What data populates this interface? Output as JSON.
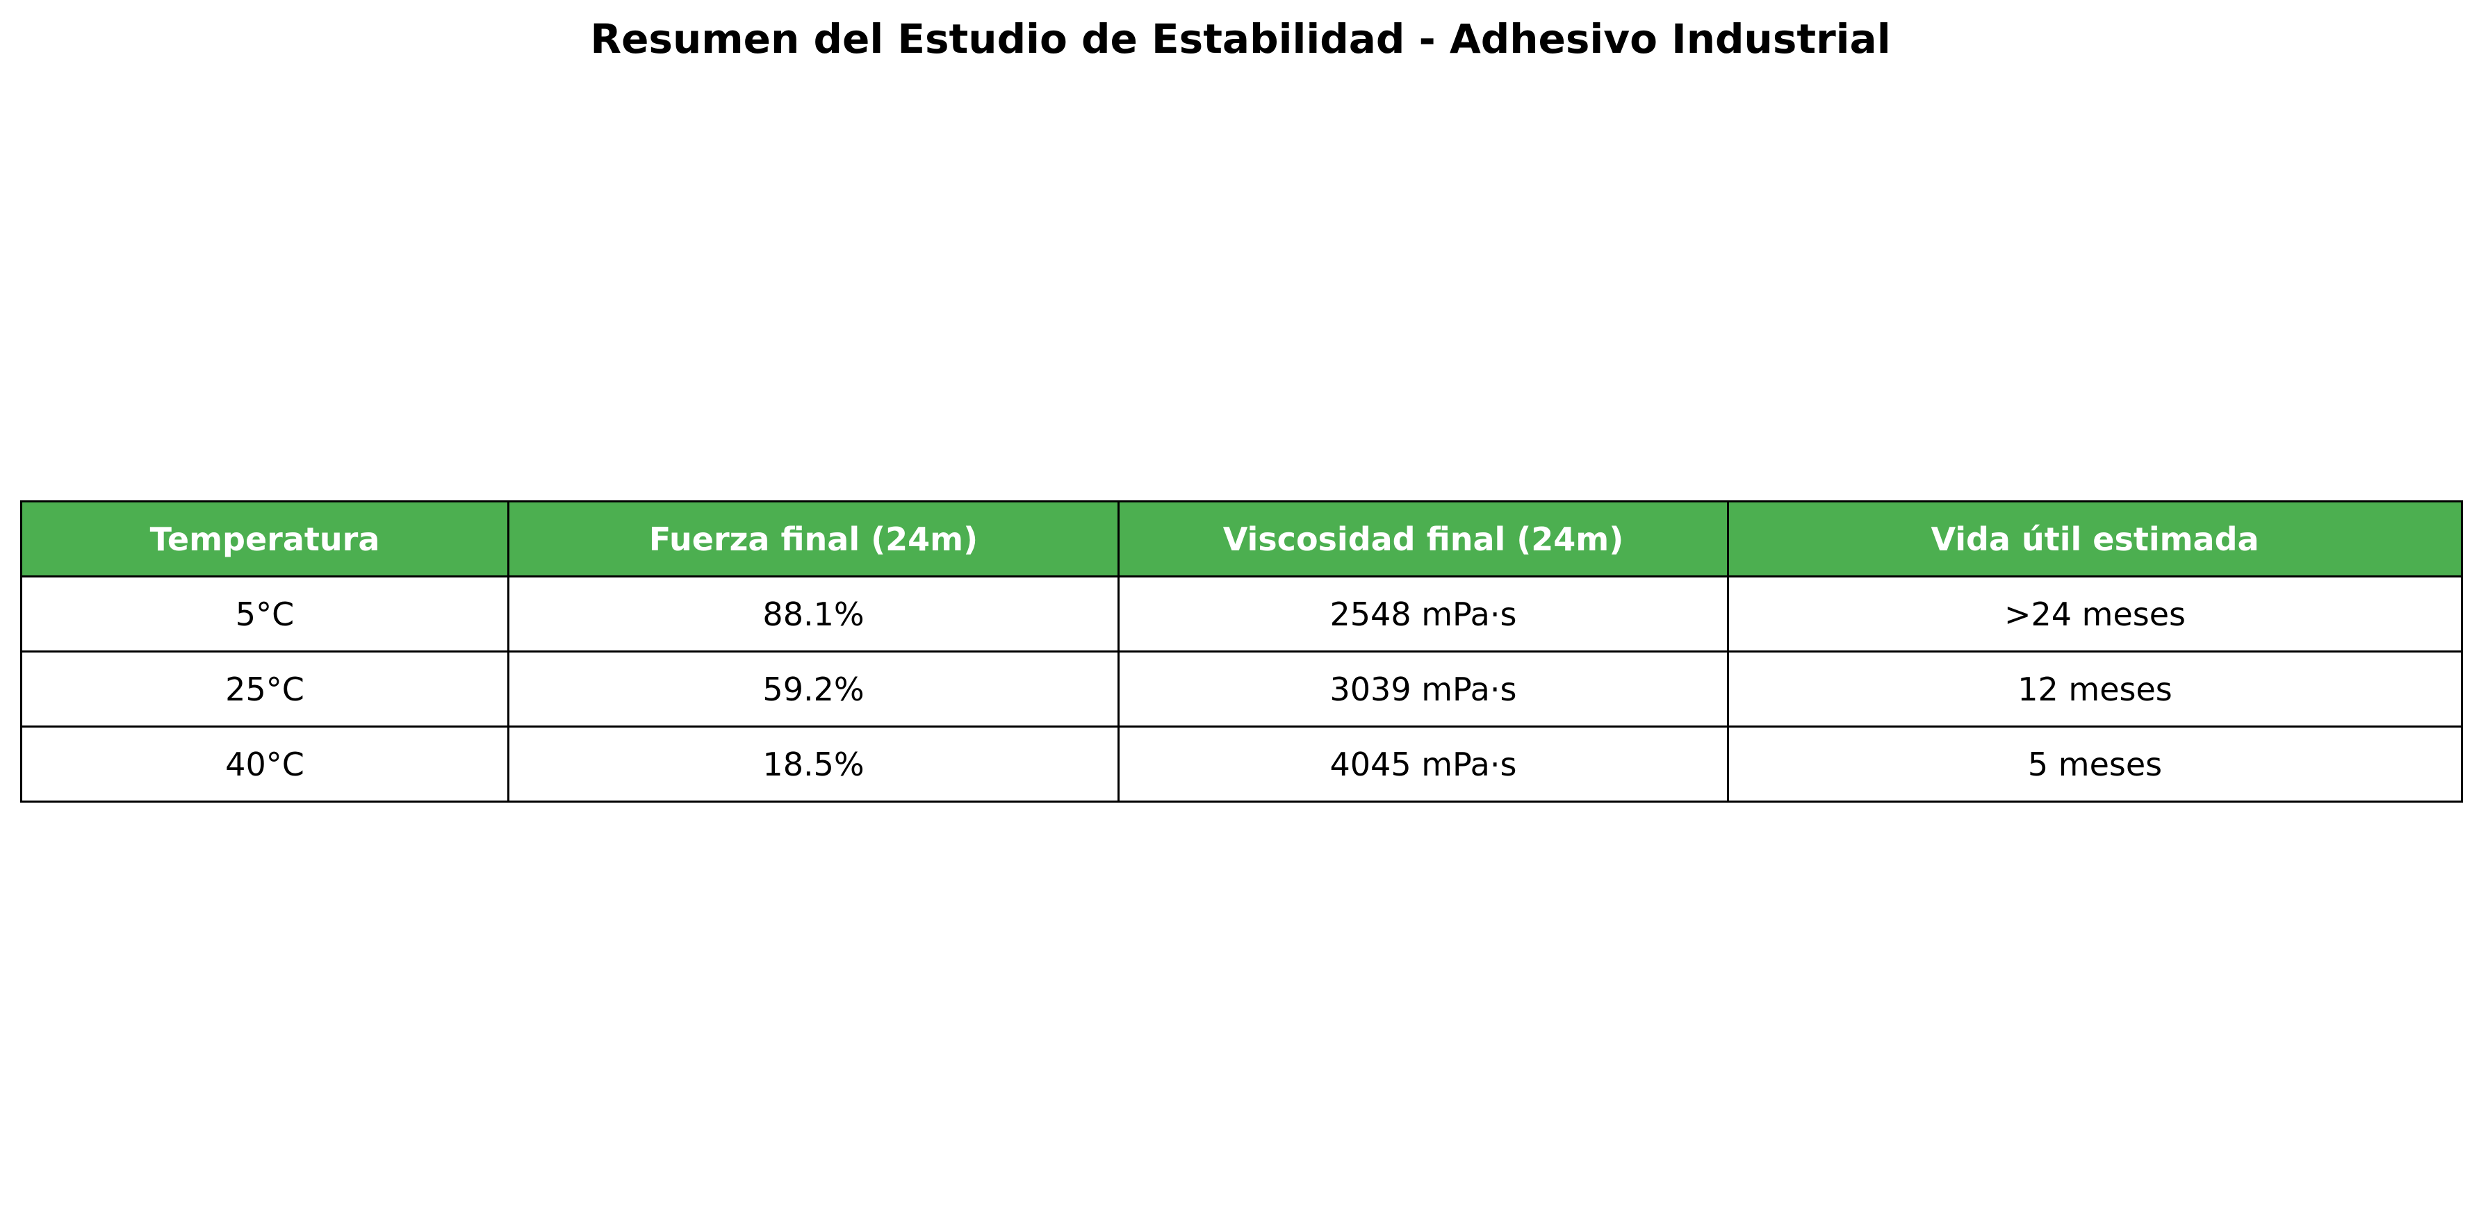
{
  "title": "Resumen del Estudio de Estabilidad - Adhesivo Industrial",
  "colors": {
    "header_background": "#4caf50",
    "header_text": "#ffffff",
    "cell_background": "#ffffff",
    "border": "#000000"
  },
  "chart_data": {
    "type": "table",
    "title": "Resumen del Estudio de Estabilidad - Adhesivo Industrial",
    "columns": [
      "Temperatura",
      "Fuerza final (24m)",
      "Viscosidad final (24m)",
      "Vida útil estimada"
    ],
    "rows": [
      [
        "5°C",
        "88.1%",
        "2548 mPa·s",
        ">24 meses"
      ],
      [
        "25°C",
        "59.2%",
        "3039 mPa·s",
        "12 meses"
      ],
      [
        "40°C",
        "18.5%",
        "4045 mPa·s",
        "5 meses"
      ]
    ]
  }
}
